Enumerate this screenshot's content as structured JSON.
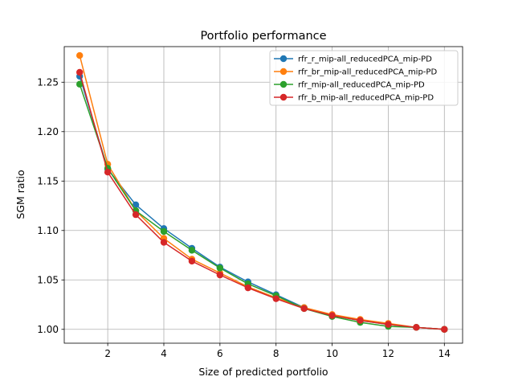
{
  "chart_data": {
    "type": "line",
    "title": "Portfolio performance",
    "xlabel": "Size of predicted portfolio",
    "ylabel": "SGM ratio",
    "xlim": [
      0.45,
      14.65
    ],
    "ylim": [
      0.986,
      1.286
    ],
    "xticks": [
      2,
      4,
      6,
      8,
      10,
      12,
      14
    ],
    "yticks": [
      1.0,
      1.05,
      1.1,
      1.15,
      1.2,
      1.25
    ],
    "ytick_labels": [
      "1.00",
      "1.05",
      "1.10",
      "1.15",
      "1.20",
      "1.25"
    ],
    "grid": true,
    "legend_position": "top-right",
    "x": [
      1,
      2,
      3,
      4,
      5,
      6,
      7,
      8,
      9,
      10,
      11,
      12,
      13,
      14
    ],
    "series": [
      {
        "name": "rfr_r_mip-all_reducedPCA_mip-PD",
        "color": "#1f77b4",
        "values": [
          1.256,
          1.162,
          1.126,
          1.102,
          1.082,
          1.063,
          1.048,
          1.035,
          1.022,
          1.014,
          1.009,
          1.005,
          1.002,
          1.0
        ]
      },
      {
        "name": "rfr_br_mip-all_reducedPCA_mip-PD",
        "color": "#ff7f0e",
        "values": [
          1.277,
          1.167,
          1.12,
          1.092,
          1.071,
          1.057,
          1.043,
          1.032,
          1.022,
          1.015,
          1.01,
          1.006,
          1.002,
          1.0
        ]
      },
      {
        "name": "rfr_mip-all_reducedPCA_mip-PD",
        "color": "#2ca02c",
        "values": [
          1.248,
          1.163,
          1.12,
          1.099,
          1.08,
          1.062,
          1.046,
          1.034,
          1.021,
          1.013,
          1.007,
          1.003,
          1.002,
          1.0
        ]
      },
      {
        "name": "rfr_b_mip-all_reducedPCA_mip-PD",
        "color": "#d62728",
        "values": [
          1.26,
          1.159,
          1.116,
          1.088,
          1.069,
          1.055,
          1.042,
          1.031,
          1.021,
          1.014,
          1.009,
          1.005,
          1.002,
          1.0
        ]
      }
    ]
  }
}
